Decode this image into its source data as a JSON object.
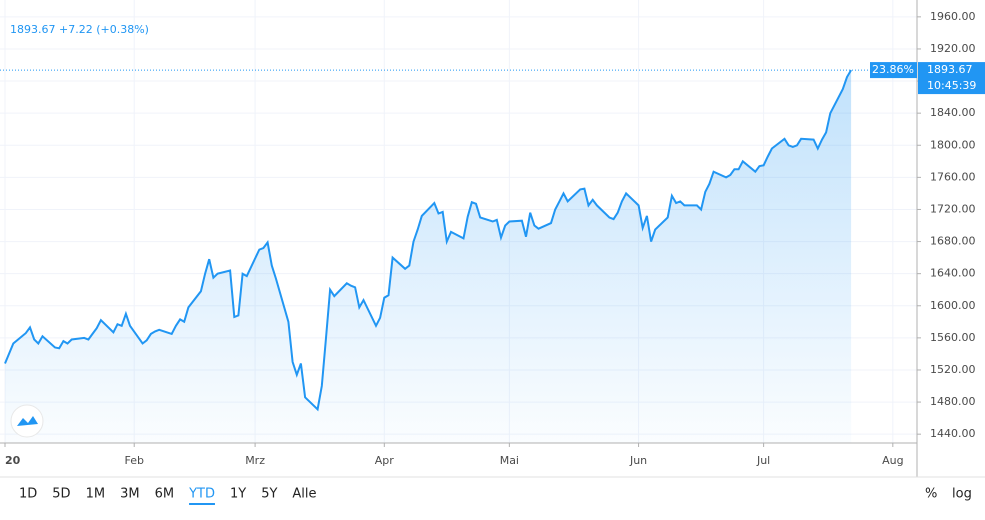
{
  "chart_data": {
    "type": "area",
    "header": "1893.67 +7.22 (+0.38%)",
    "price_tag": {
      "change": "23.86%",
      "price": "1893.67",
      "time": "10:45:39"
    },
    "color": "#2196f3",
    "x": [
      0,
      2,
      5,
      6,
      7,
      8,
      9,
      12,
      13,
      14,
      15,
      16,
      19,
      20,
      21,
      22,
      23,
      26,
      27,
      28,
      29,
      30,
      33,
      34,
      35,
      36,
      37,
      40,
      41,
      42,
      43,
      44,
      47,
      48,
      49,
      50,
      51,
      54,
      55,
      56,
      57,
      58,
      61,
      62,
      63,
      64,
      65,
      68,
      69,
      70,
      71,
      72,
      75,
      76,
      77,
      78,
      79,
      82,
      83,
      84,
      85,
      86,
      89,
      90,
      91,
      92,
      93,
      96,
      97,
      98,
      99,
      100,
      103,
      104,
      105,
      106,
      107,
      110,
      111,
      112,
      113,
      114,
      117,
      118,
      119,
      120,
      121,
      124,
      125,
      126,
      127,
      128,
      131,
      132,
      133,
      134,
      135,
      138,
      139,
      140,
      141,
      142,
      145,
      146,
      147,
      148,
      149,
      152,
      153,
      154,
      155,
      156,
      159,
      160,
      161,
      162,
      163,
      166,
      167,
      168,
      169,
      170,
      173,
      174,
      175,
      176,
      177,
      180,
      181,
      182,
      183,
      184,
      187,
      188,
      189,
      190,
      191,
      194,
      195,
      196,
      197,
      198,
      201,
      202,
      203
    ],
    "values": [
      1528,
      1553,
      1566,
      1573,
      1558,
      1553,
      1562,
      1548,
      1547,
      1556,
      1553,
      1558,
      1560,
      1558,
      1565,
      1572,
      1582,
      1567,
      1577,
      1575,
      1590,
      1575,
      1553,
      1557,
      1565,
      1568,
      1570,
      1565,
      1575,
      1583,
      1580,
      1598,
      1618,
      1640,
      1658,
      1635,
      1640,
      1644,
      1586,
      1588,
      1640,
      1637,
      1670,
      1672,
      1679,
      1650,
      1634,
      1580,
      1530,
      1514,
      1528,
      1486,
      1471,
      1500,
      1560,
      1620,
      1612,
      1628,
      1625,
      1623,
      1598,
      1607,
      1575,
      1585,
      1610,
      1613,
      1660,
      1646,
      1650,
      1680,
      1695,
      1712,
      1728,
      1715,
      1717,
      1680,
      1692,
      1684,
      1711,
      1729,
      1727,
      1710,
      1705,
      1707,
      1685,
      1700,
      1705,
      1706,
      1686,
      1716,
      1700,
      1696,
      1703,
      1720,
      1730,
      1740,
      1730,
      1745,
      1746,
      1725,
      1732,
      1725,
      1710,
      1708,
      1716,
      1730,
      1740,
      1725,
      1697,
      1712,
      1680,
      1695,
      1710,
      1737,
      1728,
      1730,
      1725,
      1725,
      1720,
      1742,
      1752,
      1767,
      1760,
      1763,
      1770,
      1770,
      1780,
      1767,
      1774,
      1775,
      1786,
      1796,
      1808,
      1800,
      1798,
      1800,
      1808,
      1807,
      1796,
      1807,
      1816,
      1840,
      1870,
      1885,
      1893.67
    ],
    "xlim": [
      -1.2,
      218.8
    ],
    "xticks": [
      {
        "value": 0,
        "label": "20"
      },
      {
        "value": 31,
        "label": "Feb"
      },
      {
        "value": 60,
        "label": "Mrz"
      },
      {
        "value": 91,
        "label": "Apr"
      },
      {
        "value": 121,
        "label": "Mai"
      },
      {
        "value": 152,
        "label": "Jun"
      },
      {
        "value": 182,
        "label": "Jul"
      },
      {
        "value": 213,
        "label": "Aug"
      }
    ],
    "ylim": [
      1429,
      1981
    ],
    "yticks": [
      {
        "value": 1440,
        "label": "1440.00"
      },
      {
        "value": 1480,
        "label": "1480.00"
      },
      {
        "value": 1520,
        "label": "1520.00"
      },
      {
        "value": 1560,
        "label": "1560.00"
      },
      {
        "value": 1600,
        "label": "1600.00"
      },
      {
        "value": 1640,
        "label": "1640.00"
      },
      {
        "value": 1680,
        "label": "1680.00"
      },
      {
        "value": 1720,
        "label": "1720.00"
      },
      {
        "value": 1760,
        "label": "1760.00"
      },
      {
        "value": 1800,
        "label": "1800.00"
      },
      {
        "value": 1840,
        "label": "1840.00"
      },
      {
        "value": 1880,
        "label": "1880.00"
      },
      {
        "value": 1920,
        "label": "1920.00"
      },
      {
        "value": 1960,
        "label": "1960.00"
      }
    ],
    "grid": true,
    "ranges": [
      "1D",
      "5D",
      "1M",
      "3M",
      "6M",
      "YTD",
      "1Y",
      "5Y",
      "Alle"
    ],
    "active_range": 5,
    "scale_buttons": [
      "%",
      "log"
    ]
  }
}
